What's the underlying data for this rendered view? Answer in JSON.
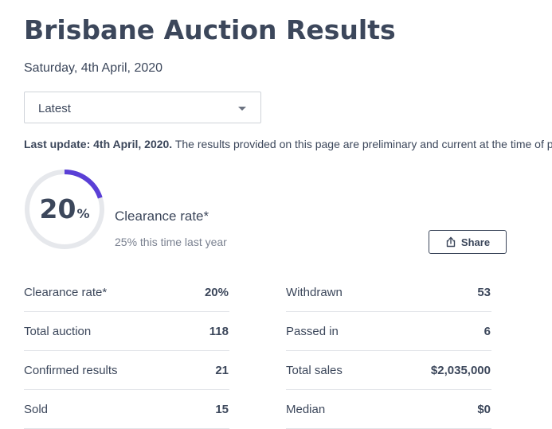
{
  "header": {
    "title": "Brisbane Auction Results",
    "date": "Saturday, 4th April, 2020"
  },
  "dropdown": {
    "selected": "Latest"
  },
  "update": {
    "bold_text": "Last update: 4th April, 2020.",
    "text": " The results provided on this page are preliminary and current at the time of publishing."
  },
  "summary": {
    "clearance_value": "20",
    "clearance_unit": "%",
    "clearance_fraction": 0.2,
    "clearance_label": "Clearance rate*",
    "last_year_text": "25% this time last year",
    "share_label": "Share",
    "share_icon": "share-icon"
  },
  "colors": {
    "gauge_track": "#e6e8ec",
    "gauge_fill": "#5a3fd6",
    "text": "#3c475b"
  },
  "stats_left": [
    {
      "label": "Clearance rate*",
      "value": "20%"
    },
    {
      "label": "Total auction",
      "value": "118"
    },
    {
      "label": "Confirmed results",
      "value": "21"
    },
    {
      "label": "Sold",
      "value": "15"
    }
  ],
  "stats_right": [
    {
      "label": "Withdrawn",
      "value": "53"
    },
    {
      "label": "Passed in",
      "value": "6"
    },
    {
      "label": "Total sales",
      "value": "$2,035,000"
    },
    {
      "label": "Median",
      "value": "$0"
    }
  ]
}
